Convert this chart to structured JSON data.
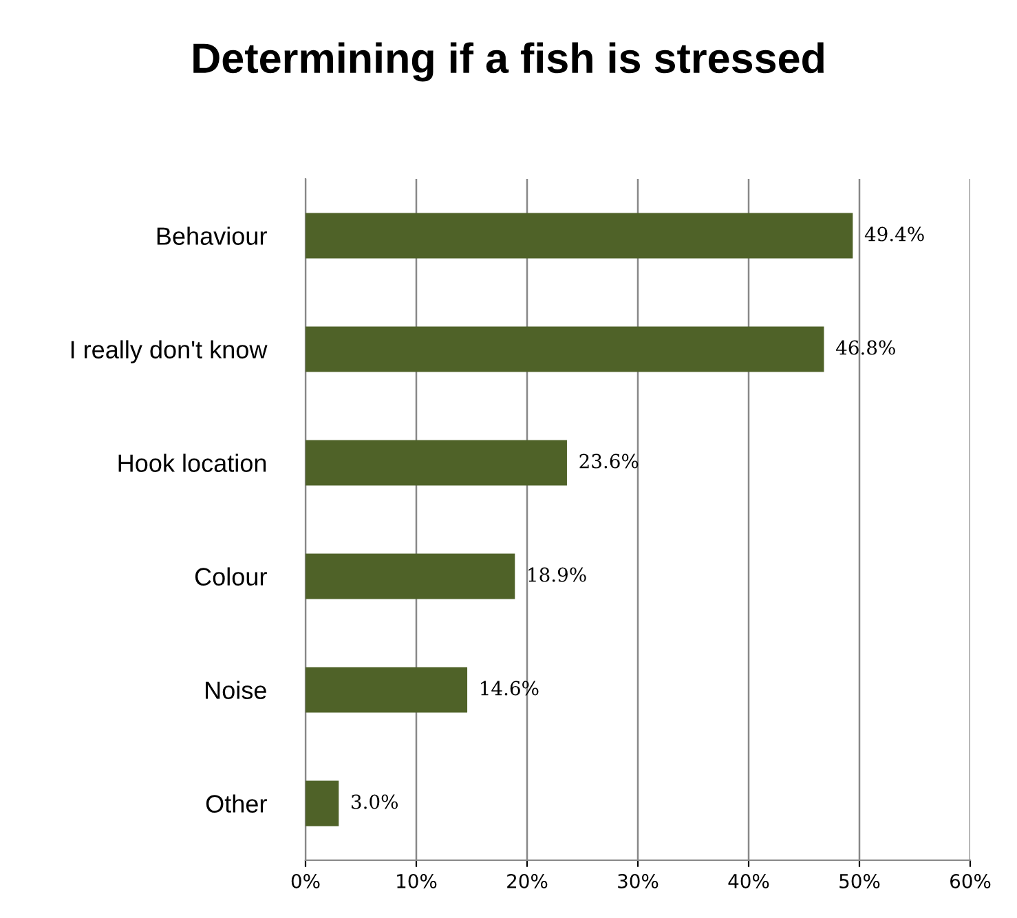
{
  "chart_data": {
    "type": "bar",
    "orientation": "horizontal",
    "title": "Determining if a fish is stressed",
    "categories": [
      "Behaviour",
      "I really don't know",
      "Hook location",
      "Colour",
      "Noise",
      "Other"
    ],
    "values": [
      49.4,
      46.8,
      23.6,
      18.9,
      14.6,
      3.0
    ],
    "value_labels": [
      "49.4%",
      "46.8%",
      "23.6%",
      "18.9%",
      "14.6%",
      "3.0%"
    ],
    "color": "#4f6228",
    "xlim": [
      0,
      60
    ],
    "xticks": [
      {
        "value": 0,
        "label": "0%"
      },
      {
        "value": 10,
        "label": "10%"
      },
      {
        "value": 20,
        "label": "20%"
      },
      {
        "value": 30,
        "label": "30%"
      },
      {
        "value": 40,
        "label": "40%"
      },
      {
        "value": 50,
        "label": "50%"
      },
      {
        "value": 60,
        "label": "60%"
      }
    ],
    "grid": "x"
  }
}
